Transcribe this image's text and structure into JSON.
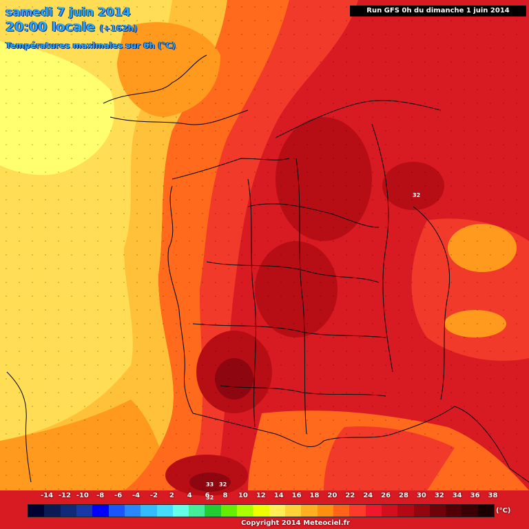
{
  "header": {
    "date": "samedi 7 juin 2014",
    "time": "20:00 locale",
    "lead": "(+162h)",
    "variable": "Températures maximales sur 6h (°C)"
  },
  "run_info": "Run GFS 0h du dimanche 1 juin 2014",
  "legend": {
    "ticks": [
      "-14",
      "-12",
      "-10",
      "-8",
      "-6",
      "-4",
      "-2",
      "2",
      "4",
      "6",
      "8",
      "10",
      "12",
      "14",
      "16",
      "18",
      "20",
      "22",
      "24",
      "26",
      "28",
      "30",
      "32",
      "34",
      "36",
      "38"
    ],
    "unit": "(°C)",
    "colors": [
      "#000033",
      "#0a1a55",
      "#102a7a",
      "#1838a8",
      "#0000ff",
      "#1a55ff",
      "#2a88ff",
      "#33bbff",
      "#44ddff",
      "#66ffe8",
      "#44ee99",
      "#22cc33",
      "#66ee00",
      "#aaff00",
      "#eeff00",
      "#ffee55",
      "#ffd23a",
      "#ffb020",
      "#ff9010",
      "#ff6418",
      "#ff3a2a",
      "#f0182a",
      "#d40e1c",
      "#b50814",
      "#93060f",
      "#700309",
      "#520005",
      "#3a0004",
      "#1a0000"
    ]
  },
  "copyright": "Copyright 2014 Meteociel.fr",
  "map_colors": {
    "t13": "#ffff70",
    "t15": "#ffdd55",
    "t17": "#ffc13a",
    "t19": "#ff9a1e",
    "t22": "#ff6a1c",
    "t25": "#f23a2a",
    "t27": "#d81a22",
    "t29": "#b70e16",
    "t31": "#8d0610",
    "coast": "#000000"
  },
  "value_labels": [
    {
      "v": "32"
    },
    {
      "v": "33"
    },
    {
      "v": "32"
    },
    {
      "v": "32"
    }
  ]
}
